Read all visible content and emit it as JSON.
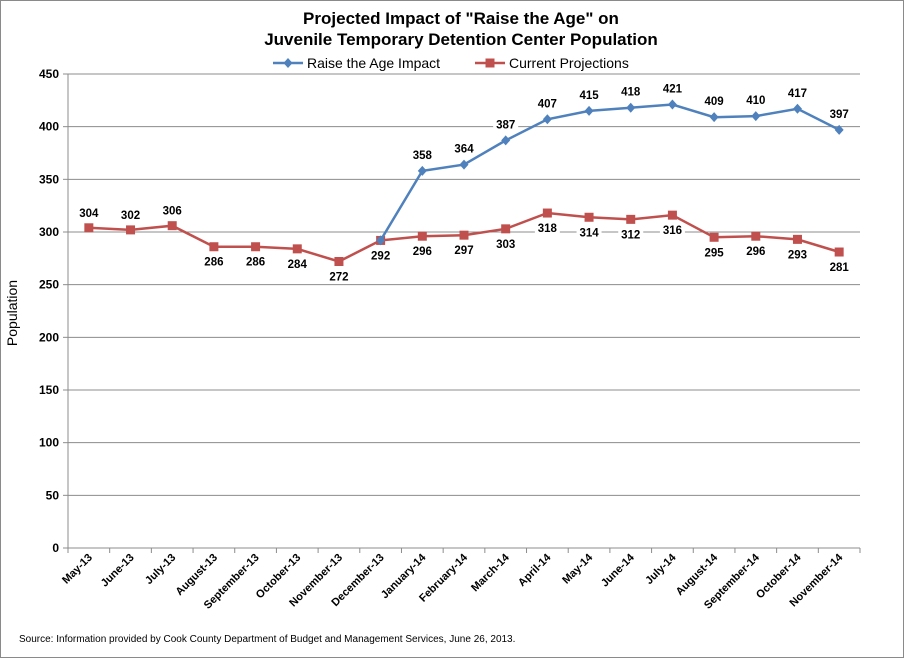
{
  "chart_data": {
    "type": "line",
    "title_lines": [
      "Projected Impact of \"Raise the Age\" on",
      "Juvenile Temporary Detention Center Population"
    ],
    "ylabel": "Population",
    "xlabel": "",
    "ylim": [
      0,
      450
    ],
    "ytick_step": 50,
    "grid": true,
    "legend_position": "top",
    "categories": [
      "May-13",
      "June-13",
      "July-13",
      "August-13",
      "September-13",
      "October-13",
      "November-13",
      "December-13",
      "January-14",
      "February-14",
      "March-14",
      "April-14",
      "May-14",
      "June-14",
      "July-14",
      "August-14",
      "September-14",
      "October-14",
      "November-14"
    ],
    "series": [
      {
        "name": "Raise the Age Impact",
        "color": "#4F81BD",
        "marker": "diamond",
        "values": [
          null,
          null,
          null,
          null,
          null,
          null,
          null,
          292,
          358,
          364,
          387,
          407,
          415,
          418,
          421,
          409,
          410,
          417,
          397
        ],
        "labels": [
          null,
          null,
          null,
          null,
          null,
          null,
          null,
          null,
          "358",
          "364",
          "387",
          "407",
          "415",
          "418",
          "421",
          "409",
          "410",
          "417",
          "397"
        ]
      },
      {
        "name": "Current Projections",
        "color": "#C0504D",
        "marker": "square",
        "values": [
          304,
          302,
          306,
          286,
          286,
          284,
          272,
          292,
          296,
          297,
          303,
          318,
          314,
          312,
          316,
          295,
          296,
          293,
          281
        ],
        "labels": [
          "304",
          "302",
          "306",
          "286",
          "286",
          "284",
          "272",
          "292",
          "296",
          "297",
          "303",
          "318",
          "314",
          "312",
          "316",
          "295",
          "296",
          "293",
          "281"
        ]
      }
    ],
    "source": "Source: Information provided by Cook County Department of Budget and Management Services, June 26, 2013."
  }
}
